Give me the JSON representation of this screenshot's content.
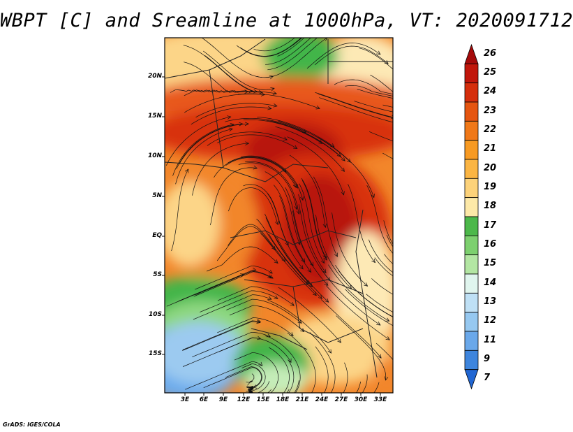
{
  "title": "WBPT [C] and Sreamline at 1000hPa, VT: 2020091712",
  "credit": "GrADS: IGES/COLA",
  "lat_labels": [
    "20N",
    "15N",
    "10N",
    "5N",
    "EQ",
    "5S",
    "10S",
    "15S"
  ],
  "lon_labels": [
    "3E",
    "6E",
    "9E",
    "12E",
    "15E",
    "18E",
    "21E",
    "24E",
    "27E",
    "30E",
    "33E"
  ],
  "colorbar": {
    "labels": [
      "26",
      "25",
      "24",
      "23",
      "22",
      "21",
      "20",
      "19",
      "18",
      "17",
      "16",
      "15",
      "14",
      "13",
      "12",
      "11",
      "9",
      "7"
    ],
    "colors": [
      "#a50a0a",
      "#c1160b",
      "#d52e0c",
      "#e55510",
      "#f07818",
      "#f79a22",
      "#fbb543",
      "#fcd27a",
      "#fde9a8",
      "#4cb84a",
      "#7dd06f",
      "#b3e6a3",
      "#e0f5ee",
      "#bfe0f5",
      "#96c8f0",
      "#6aa8ea",
      "#3e85dd",
      "#2166d2"
    ]
  },
  "map_colors": {
    "dark_red": "#b8180b",
    "red": "#d8320c",
    "orange_red": "#e8581a",
    "orange": "#f2862a",
    "light_orange": "#f8b050",
    "tan": "#fcd588",
    "pale": "#fde9b5",
    "green": "#42b548",
    "light_green": "#8fd881",
    "pale_green": "#c5ecb8",
    "light_blue": "#9ccaf0",
    "blue": "#6aaaec"
  }
}
